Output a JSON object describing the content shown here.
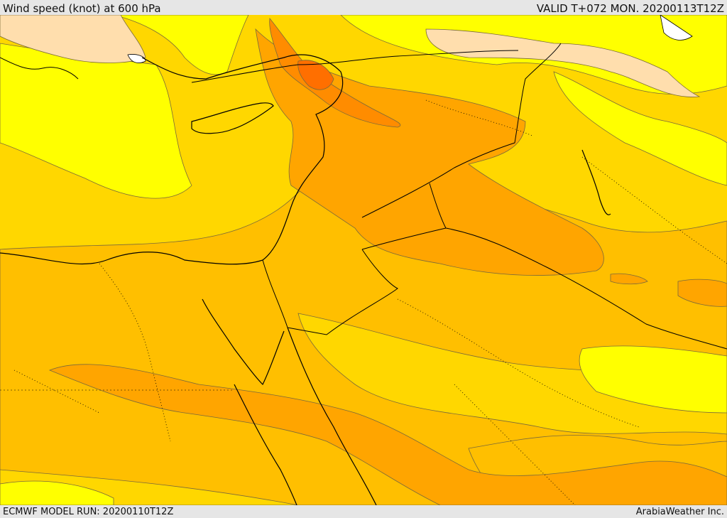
{
  "header": {
    "title": "Wind speed (knot) at 600 hPa",
    "valid": "VALID T+072 MON. 20200113T12Z"
  },
  "footer": {
    "run": "ECMWF MODEL RUN: 20200110T12Z",
    "credit": "ArabiaWeather Inc."
  },
  "palette": {
    "band_light": "#ffdead",
    "band_yellow": "#ffff00",
    "band_gold": "#ffd700",
    "band_amber": "#ffbf00",
    "band_orange": "#ffa500",
    "band_dark_orange": "#ff8c00",
    "band_red_orange": "#ff6f00",
    "contour": "#7a6a3a",
    "coast": "#000000"
  }
}
